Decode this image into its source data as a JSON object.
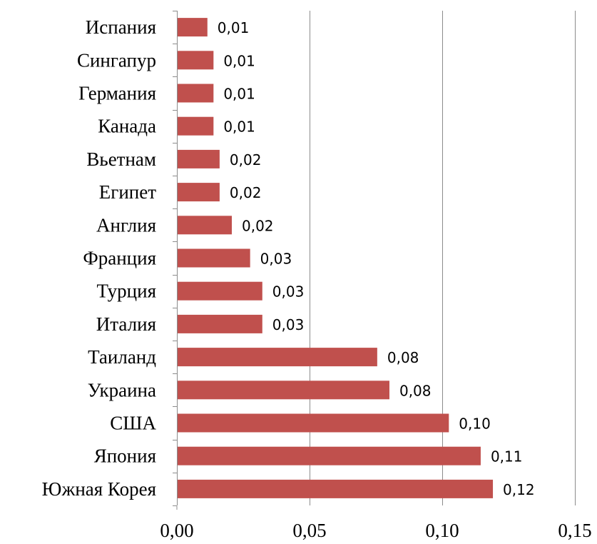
{
  "chart_data": {
    "type": "bar",
    "orientation": "horizontal",
    "categories": [
      "Испания",
      "Сингапур",
      "Германия",
      "Канада",
      "Вьетнам",
      "Египет",
      "Англия",
      "Франция",
      "Турция",
      "Италия",
      "Таиланд",
      "Украина",
      "США",
      "Япония",
      "Южная Корея"
    ],
    "values": [
      0.0115,
      0.0138,
      0.0138,
      0.0138,
      0.0161,
      0.0161,
      0.0207,
      0.0276,
      0.0322,
      0.0322,
      0.0755,
      0.0801,
      0.1025,
      0.1145,
      0.1191
    ],
    "data_labels": [
      "0,01",
      "0,01",
      "0,01",
      "0,01",
      "0,02",
      "0,02",
      "0,02",
      "0,03",
      "0,03",
      "0,03",
      "0,08",
      "0,08",
      "0,10",
      "0,11",
      "0,12"
    ],
    "xlim": [
      0,
      0.15
    ],
    "x_ticks": [
      0,
      0.05,
      0.1,
      0.15
    ],
    "x_tick_labels": [
      "0,00",
      "0,05",
      "0,10",
      "0,15"
    ],
    "title": "",
    "xlabel": "",
    "ylabel": "",
    "grid": "vertical",
    "legend": "none",
    "bar_color": "#C0504D"
  }
}
